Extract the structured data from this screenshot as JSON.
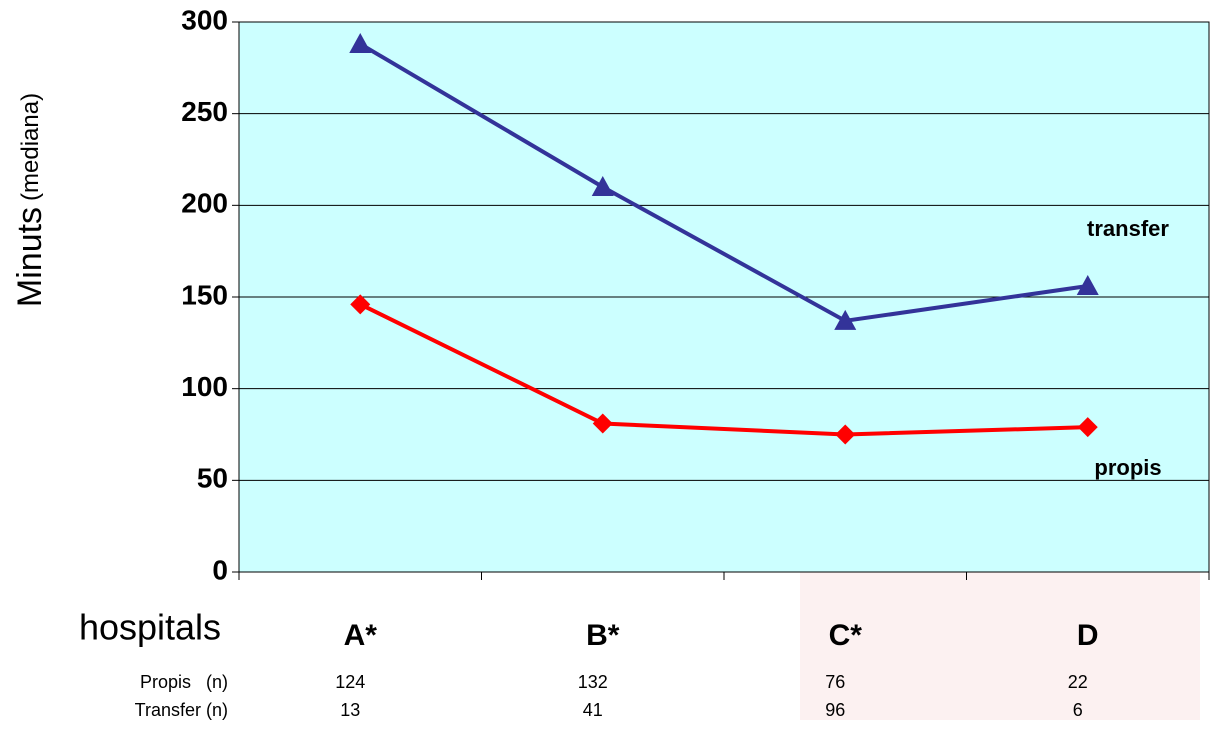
{
  "chart_data": {
    "type": "line",
    "y_label": "Minuts",
    "y_label_note": "(mediana)",
    "x_label": "hospitals",
    "categories": [
      "A*",
      "B*",
      "C*",
      "D"
    ],
    "series": [
      {
        "name": "transfer",
        "color": "#333399",
        "marker": "triangle",
        "values": [
          288,
          210,
          137,
          156
        ]
      },
      {
        "name": "propis",
        "color": "#ff0000",
        "marker": "diamond",
        "values": [
          146,
          81,
          75,
          79
        ]
      }
    ],
    "ylim": [
      0,
      300
    ],
    "yticks": [
      0,
      50,
      100,
      150,
      200,
      250,
      300
    ],
    "grid": true,
    "table": {
      "rows": [
        {
          "label": "Propis   (n)",
          "values": [
            124,
            132,
            76,
            22
          ]
        },
        {
          "label": "Transfer (n)",
          "values": [
            13,
            41,
            96,
            6
          ]
        }
      ]
    }
  }
}
